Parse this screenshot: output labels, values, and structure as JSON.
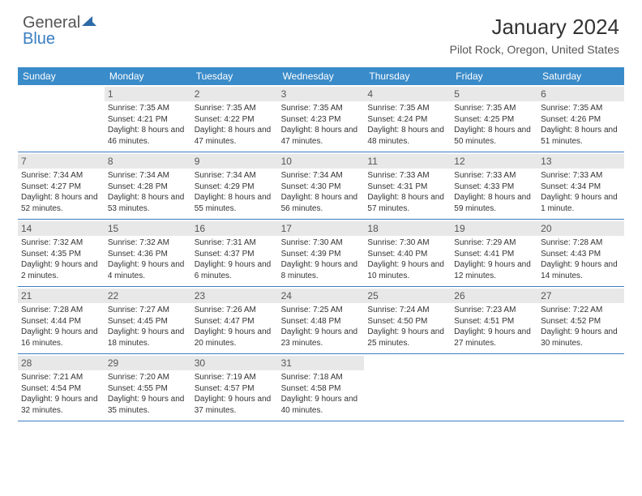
{
  "logo": {
    "text_general": "General",
    "text_blue": "Blue"
  },
  "title": "January 2024",
  "location": "Pilot Rock, Oregon, United States",
  "colors": {
    "header_bg": "#3a8bc9",
    "header_text": "#ffffff",
    "daynum_bg": "#e8e8e8",
    "border": "#3a7ec2",
    "text": "#333333",
    "logo_blue": "#3a7ec2",
    "logo_gray": "#555555"
  },
  "day_labels": [
    "Sunday",
    "Monday",
    "Tuesday",
    "Wednesday",
    "Thursday",
    "Friday",
    "Saturday"
  ],
  "weeks": [
    [
      {
        "n": "",
        "sunrise": "",
        "sunset": "",
        "daylight": ""
      },
      {
        "n": "1",
        "sunrise": "Sunrise: 7:35 AM",
        "sunset": "Sunset: 4:21 PM",
        "daylight": "Daylight: 8 hours and 46 minutes."
      },
      {
        "n": "2",
        "sunrise": "Sunrise: 7:35 AM",
        "sunset": "Sunset: 4:22 PM",
        "daylight": "Daylight: 8 hours and 47 minutes."
      },
      {
        "n": "3",
        "sunrise": "Sunrise: 7:35 AM",
        "sunset": "Sunset: 4:23 PM",
        "daylight": "Daylight: 8 hours and 47 minutes."
      },
      {
        "n": "4",
        "sunrise": "Sunrise: 7:35 AM",
        "sunset": "Sunset: 4:24 PM",
        "daylight": "Daylight: 8 hours and 48 minutes."
      },
      {
        "n": "5",
        "sunrise": "Sunrise: 7:35 AM",
        "sunset": "Sunset: 4:25 PM",
        "daylight": "Daylight: 8 hours and 50 minutes."
      },
      {
        "n": "6",
        "sunrise": "Sunrise: 7:35 AM",
        "sunset": "Sunset: 4:26 PM",
        "daylight": "Daylight: 8 hours and 51 minutes."
      }
    ],
    [
      {
        "n": "7",
        "sunrise": "Sunrise: 7:34 AM",
        "sunset": "Sunset: 4:27 PM",
        "daylight": "Daylight: 8 hours and 52 minutes."
      },
      {
        "n": "8",
        "sunrise": "Sunrise: 7:34 AM",
        "sunset": "Sunset: 4:28 PM",
        "daylight": "Daylight: 8 hours and 53 minutes."
      },
      {
        "n": "9",
        "sunrise": "Sunrise: 7:34 AM",
        "sunset": "Sunset: 4:29 PM",
        "daylight": "Daylight: 8 hours and 55 minutes."
      },
      {
        "n": "10",
        "sunrise": "Sunrise: 7:34 AM",
        "sunset": "Sunset: 4:30 PM",
        "daylight": "Daylight: 8 hours and 56 minutes."
      },
      {
        "n": "11",
        "sunrise": "Sunrise: 7:33 AM",
        "sunset": "Sunset: 4:31 PM",
        "daylight": "Daylight: 8 hours and 57 minutes."
      },
      {
        "n": "12",
        "sunrise": "Sunrise: 7:33 AM",
        "sunset": "Sunset: 4:33 PM",
        "daylight": "Daylight: 8 hours and 59 minutes."
      },
      {
        "n": "13",
        "sunrise": "Sunrise: 7:33 AM",
        "sunset": "Sunset: 4:34 PM",
        "daylight": "Daylight: 9 hours and 1 minute."
      }
    ],
    [
      {
        "n": "14",
        "sunrise": "Sunrise: 7:32 AM",
        "sunset": "Sunset: 4:35 PM",
        "daylight": "Daylight: 9 hours and 2 minutes."
      },
      {
        "n": "15",
        "sunrise": "Sunrise: 7:32 AM",
        "sunset": "Sunset: 4:36 PM",
        "daylight": "Daylight: 9 hours and 4 minutes."
      },
      {
        "n": "16",
        "sunrise": "Sunrise: 7:31 AM",
        "sunset": "Sunset: 4:37 PM",
        "daylight": "Daylight: 9 hours and 6 minutes."
      },
      {
        "n": "17",
        "sunrise": "Sunrise: 7:30 AM",
        "sunset": "Sunset: 4:39 PM",
        "daylight": "Daylight: 9 hours and 8 minutes."
      },
      {
        "n": "18",
        "sunrise": "Sunrise: 7:30 AM",
        "sunset": "Sunset: 4:40 PM",
        "daylight": "Daylight: 9 hours and 10 minutes."
      },
      {
        "n": "19",
        "sunrise": "Sunrise: 7:29 AM",
        "sunset": "Sunset: 4:41 PM",
        "daylight": "Daylight: 9 hours and 12 minutes."
      },
      {
        "n": "20",
        "sunrise": "Sunrise: 7:28 AM",
        "sunset": "Sunset: 4:43 PM",
        "daylight": "Daylight: 9 hours and 14 minutes."
      }
    ],
    [
      {
        "n": "21",
        "sunrise": "Sunrise: 7:28 AM",
        "sunset": "Sunset: 4:44 PM",
        "daylight": "Daylight: 9 hours and 16 minutes."
      },
      {
        "n": "22",
        "sunrise": "Sunrise: 7:27 AM",
        "sunset": "Sunset: 4:45 PM",
        "daylight": "Daylight: 9 hours and 18 minutes."
      },
      {
        "n": "23",
        "sunrise": "Sunrise: 7:26 AM",
        "sunset": "Sunset: 4:47 PM",
        "daylight": "Daylight: 9 hours and 20 minutes."
      },
      {
        "n": "24",
        "sunrise": "Sunrise: 7:25 AM",
        "sunset": "Sunset: 4:48 PM",
        "daylight": "Daylight: 9 hours and 23 minutes."
      },
      {
        "n": "25",
        "sunrise": "Sunrise: 7:24 AM",
        "sunset": "Sunset: 4:50 PM",
        "daylight": "Daylight: 9 hours and 25 minutes."
      },
      {
        "n": "26",
        "sunrise": "Sunrise: 7:23 AM",
        "sunset": "Sunset: 4:51 PM",
        "daylight": "Daylight: 9 hours and 27 minutes."
      },
      {
        "n": "27",
        "sunrise": "Sunrise: 7:22 AM",
        "sunset": "Sunset: 4:52 PM",
        "daylight": "Daylight: 9 hours and 30 minutes."
      }
    ],
    [
      {
        "n": "28",
        "sunrise": "Sunrise: 7:21 AM",
        "sunset": "Sunset: 4:54 PM",
        "daylight": "Daylight: 9 hours and 32 minutes."
      },
      {
        "n": "29",
        "sunrise": "Sunrise: 7:20 AM",
        "sunset": "Sunset: 4:55 PM",
        "daylight": "Daylight: 9 hours and 35 minutes."
      },
      {
        "n": "30",
        "sunrise": "Sunrise: 7:19 AM",
        "sunset": "Sunset: 4:57 PM",
        "daylight": "Daylight: 9 hours and 37 minutes."
      },
      {
        "n": "31",
        "sunrise": "Sunrise: 7:18 AM",
        "sunset": "Sunset: 4:58 PM",
        "daylight": "Daylight: 9 hours and 40 minutes."
      },
      {
        "n": "",
        "sunrise": "",
        "sunset": "",
        "daylight": ""
      },
      {
        "n": "",
        "sunrise": "",
        "sunset": "",
        "daylight": ""
      },
      {
        "n": "",
        "sunrise": "",
        "sunset": "",
        "daylight": ""
      }
    ]
  ]
}
